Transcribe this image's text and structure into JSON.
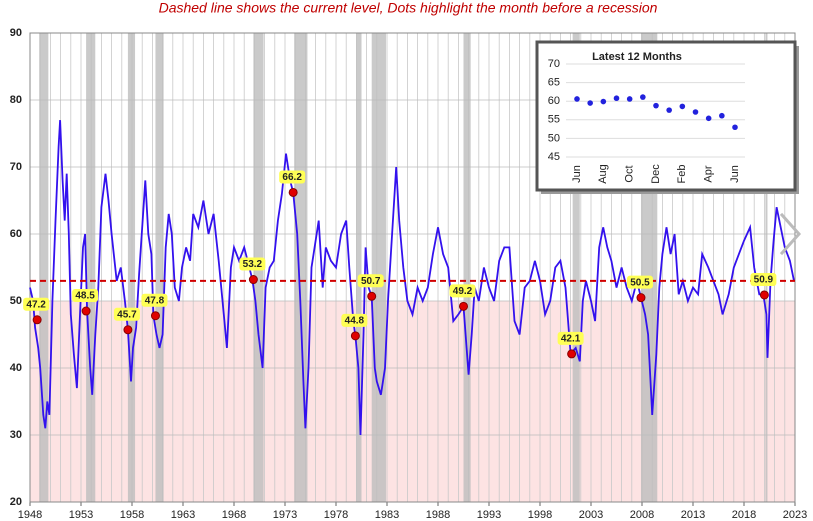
{
  "chart_data": [
    {
      "type": "line",
      "title": "Dashed line shows the current level, Dots highlight the month before a recession",
      "color": "#3311ee",
      "x": [
        1948.0,
        1948.3,
        1948.5,
        1948.8,
        1949.0,
        1949.3,
        1949.5,
        1949.7,
        1949.9,
        1950.2,
        1950.5,
        1950.8,
        1950.95,
        1951.2,
        1951.4,
        1951.6,
        1951.8,
        1952.0,
        1952.3,
        1952.6,
        1952.9,
        1953.2,
        1953.4,
        1953.6,
        1953.9,
        1954.1,
        1954.4,
        1954.7,
        1955.0,
        1955.4,
        1955.7,
        1956.0,
        1956.5,
        1956.9,
        1957.3,
        1957.6,
        1957.9,
        1958.1,
        1958.4,
        1958.7,
        1959.0,
        1959.3,
        1959.6,
        1959.9,
        1960.1,
        1960.4,
        1960.7,
        1961.0,
        1961.3,
        1961.6,
        1961.9,
        1962.2,
        1962.6,
        1962.9,
        1963.3,
        1963.7,
        1964.0,
        1964.5,
        1965.0,
        1965.5,
        1966.0,
        1966.5,
        1967.0,
        1967.3,
        1967.7,
        1968.0,
        1968.5,
        1969.0,
        1969.5,
        1969.8,
        1970.1,
        1970.4,
        1970.8,
        1971.1,
        1971.5,
        1971.9,
        1972.3,
        1972.7,
        1973.1,
        1973.5,
        1973.8,
        1974.2,
        1974.5,
        1974.8,
        1975.0,
        1975.3,
        1975.6,
        1975.9,
        1976.3,
        1976.7,
        1977.0,
        1977.5,
        1978.0,
        1978.5,
        1979.0,
        1979.3,
        1979.7,
        1979.9,
        1980.2,
        1980.4,
        1980.7,
        1980.9,
        1981.2,
        1981.5,
        1981.8,
        1982.0,
        1982.4,
        1982.8,
        1983.1,
        1983.5,
        1983.9,
        1984.2,
        1984.6,
        1985.0,
        1985.5,
        1986.0,
        1986.5,
        1987.0,
        1987.5,
        1988.0,
        1988.5,
        1989.0,
        1989.5,
        1990.0,
        1990.5,
        1990.8,
        1991.0,
        1991.3,
        1991.6,
        1992.0,
        1992.5,
        1993.0,
        1993.5,
        1994.0,
        1994.5,
        1995.0,
        1995.5,
        1996.0,
        1996.5,
        1997.0,
        1997.5,
        1998.0,
        1998.5,
        1999.0,
        1999.5,
        2000.0,
        2000.5,
        2001.0,
        2001.5,
        2001.9,
        2002.2,
        2002.5,
        2003.0,
        2003.4,
        2003.8,
        2004.2,
        2004.6,
        2005.0,
        2005.5,
        2006.0,
        2006.5,
        2007.0,
        2007.5,
        2007.9,
        2008.3,
        2008.6,
        2008.9,
        2009.0,
        2009.4,
        2009.7,
        2010.0,
        2010.4,
        2010.8,
        2011.2,
        2011.6,
        2012.0,
        2012.5,
        2013.0,
        2013.5,
        2013.9,
        2014.5,
        2015.0,
        2015.5,
        2015.9,
        2016.5,
        2017.0,
        2017.5,
        2018.0,
        2018.6,
        2019.0,
        2019.5,
        2019.9,
        2020.2,
        2020.3,
        2020.6,
        2020.9,
        2021.2,
        2021.6,
        2022.0,
        2022.5,
        2022.9
      ],
      "values": [
        52,
        50,
        46,
        43,
        40,
        33,
        31,
        35,
        33,
        50,
        62,
        73,
        77,
        68,
        62,
        69,
        60,
        48,
        42,
        37,
        48,
        58,
        60,
        48.5,
        40,
        36,
        45,
        52,
        64,
        69,
        65,
        60,
        53,
        55,
        50,
        45.7,
        38,
        43,
        46,
        54,
        61,
        68,
        60,
        57,
        47.8,
        45,
        43,
        45,
        58,
        63,
        60,
        52,
        50,
        55,
        58,
        56,
        63,
        61,
        65,
        60,
        63,
        56,
        48,
        43,
        55,
        58,
        56,
        58,
        55,
        53.2,
        50,
        45,
        40,
        52,
        55,
        56,
        62,
        66,
        72,
        68,
        66.2,
        60,
        50,
        38,
        31,
        40,
        55,
        58,
        62,
        52,
        58,
        56,
        55,
        60,
        62,
        55,
        47,
        44.8,
        40,
        30,
        45,
        58,
        52,
        50.7,
        40,
        38,
        36,
        40,
        50,
        60,
        70,
        62,
        55,
        50,
        48,
        52,
        50,
        52,
        57,
        61,
        57,
        55,
        47,
        48,
        49.2,
        43,
        39,
        45,
        52,
        50,
        55,
        52,
        50,
        56,
        58,
        58,
        47,
        45,
        52,
        53,
        56,
        53,
        48,
        50,
        55,
        56,
        52,
        42.1,
        43,
        41,
        50,
        53,
        50,
        47,
        58,
        61,
        58,
        56,
        52,
        55,
        52,
        50,
        53,
        50.5,
        48,
        45,
        36,
        33,
        42,
        52,
        57,
        61,
        57,
        60,
        51,
        53,
        50,
        52,
        51,
        57,
        55,
        53,
        51,
        48,
        51,
        55,
        57,
        59,
        61,
        55,
        51,
        50.9,
        48,
        41.5,
        53,
        59,
        64,
        61,
        58,
        56,
        53
      ],
      "highlights": {
        "x": [
          1948.7,
          1953.5,
          1957.6,
          1960.3,
          1969.9,
          1973.8,
          1979.9,
          1981.5,
          1990.5,
          2001.1,
          2007.9,
          2020.0
        ],
        "values": [
          47.2,
          48.5,
          45.7,
          47.8,
          53.2,
          66.2,
          44.8,
          50.7,
          49.2,
          42.1,
          50.5,
          50.9
        ]
      },
      "shaded_periods": [
        [
          1948.9,
          1949.8
        ],
        [
          1953.5,
          1954.4
        ],
        [
          1957.6,
          1958.3
        ],
        [
          1960.3,
          1961.1
        ],
        [
          1969.9,
          1970.9
        ],
        [
          1973.9,
          1975.2
        ],
        [
          1980.0,
          1980.5
        ],
        [
          1981.5,
          1982.9
        ],
        [
          1990.5,
          1991.2
        ],
        [
          2001.2,
          2001.9
        ],
        [
          2007.9,
          2009.5
        ],
        [
          2020.1,
          2020.3
        ]
      ],
      "threshold": 50,
      "current_level": 53,
      "xlim": [
        1948,
        2023
      ],
      "xticks": [
        1948,
        1953,
        1958,
        1963,
        1968,
        1973,
        1978,
        1983,
        1988,
        1993,
        1998,
        2003,
        2008,
        2013,
        2018,
        2023
      ],
      "ylim": [
        20,
        90
      ],
      "yticks": [
        20,
        30,
        40,
        50,
        60,
        70,
        80,
        90
      ],
      "grid": true
    },
    {
      "type": "scatter",
      "title": "Latest 12 Months",
      "color": "#2222dd",
      "categories": [
        "Jun",
        null,
        "Aug",
        null,
        "Oct",
        null,
        "Dec",
        null,
        "Feb",
        null,
        "Apr",
        null,
        "Jun"
      ],
      "values": [
        60.6,
        59.5,
        59.9,
        60.8,
        60.6,
        61.1,
        58.8,
        57.6,
        58.6,
        57.1,
        55.4,
        56.1,
        53.0
      ],
      "ylim": [
        45,
        70
      ],
      "yticks": [
        45,
        50,
        55,
        60,
        65,
        70
      ],
      "grid": true
    }
  ]
}
